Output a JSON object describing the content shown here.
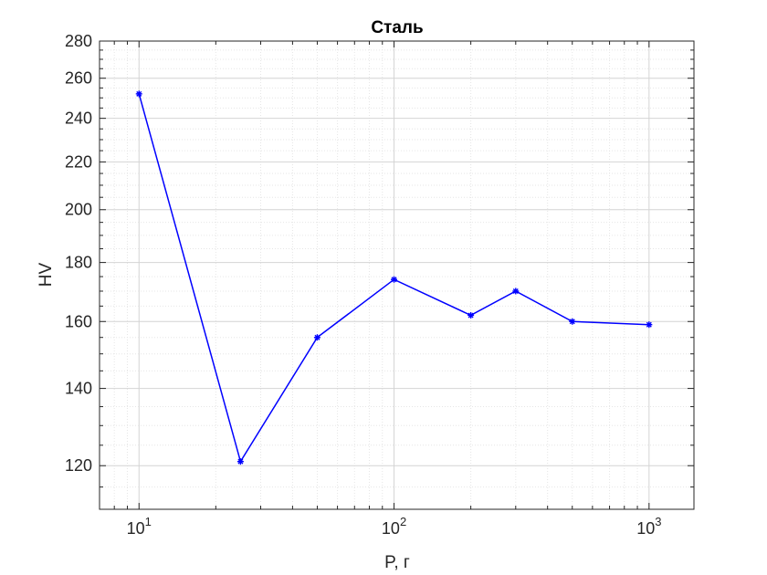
{
  "chart_data": {
    "type": "line",
    "title": "Сталь",
    "xlabel": "P, г",
    "ylabel": "HV",
    "xscale": "log",
    "yscale": "log",
    "xlim": [
      7,
      1500
    ],
    "ylim": [
      110,
      280
    ],
    "grid": true,
    "x_ticks": [
      {
        "value": 10,
        "base": "10",
        "exp": "1"
      },
      {
        "value": 100,
        "base": "10",
        "exp": "2"
      },
      {
        "value": 1000,
        "base": "10",
        "exp": "3"
      }
    ],
    "y_ticks": [
      120,
      140,
      160,
      180,
      200,
      220,
      240,
      260,
      280
    ],
    "series": [
      {
        "color": "#0000ff",
        "marker": "asterisk",
        "x": [
          10,
          25,
          50,
          100,
          200,
          300,
          500,
          1000
        ],
        "y": [
          252,
          121,
          155,
          174,
          162,
          170,
          160,
          159
        ]
      }
    ]
  }
}
